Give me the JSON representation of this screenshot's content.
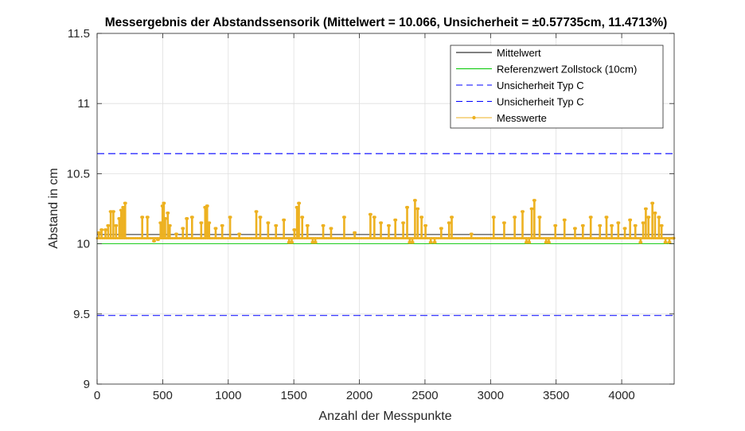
{
  "chart_data": {
    "type": "line",
    "title": "Messergebnis der Abstandssensorik (Mittelwert = 10.066, Unsicherheit = ±0.57735cm, 11.4713%)",
    "xlabel": "Anzahl der Messpunkte",
    "ylabel": "Abstand in cm",
    "xlim": [
      0,
      4400
    ],
    "ylim": [
      9,
      11.5
    ],
    "xticks": [
      0,
      500,
      1000,
      1500,
      2000,
      2500,
      3000,
      3500,
      4000
    ],
    "xtick_labels": [
      "0",
      "500",
      "1000",
      "1500",
      "2000",
      "2500",
      "3000",
      "3500",
      "4000"
    ],
    "yticks": [
      9,
      9.5,
      10,
      10.5,
      11,
      11.5
    ],
    "ytick_labels": [
      "9",
      "9.5",
      "10",
      "10.5",
      "11",
      "11.5"
    ],
    "grid": true,
    "legend_position": "top-right",
    "reference_lines": [
      {
        "name": "Mittelwert",
        "y": 10.066,
        "color": "#000000",
        "style": "solid"
      },
      {
        "name": "Referenzwert Zollstock (10cm)",
        "y": 10.0,
        "color": "#00c800",
        "style": "solid"
      },
      {
        "name": "Unsicherheit Typ C",
        "y": 10.643,
        "color": "#0000ff",
        "style": "dashed"
      },
      {
        "name": "Unsicherheit Typ C",
        "y": 9.489,
        "color": "#0000ff",
        "style": "dashed"
      }
    ],
    "series": [
      {
        "name": "Messwerte",
        "color": "#edb120",
        "baseline": 10.04,
        "x_range": [
          0,
          4400
        ],
        "spikes": [
          {
            "x": 10,
            "y": 10.08
          },
          {
            "x": 30,
            "y": 10.1
          },
          {
            "x": 60,
            "y": 10.1
          },
          {
            "x": 80,
            "y": 10.13
          },
          {
            "x": 100,
            "y": 10.23
          },
          {
            "x": 120,
            "y": 10.23
          },
          {
            "x": 140,
            "y": 10.13
          },
          {
            "x": 165,
            "y": 10.18
          },
          {
            "x": 180,
            "y": 10.24
          },
          {
            "x": 195,
            "y": 10.26
          },
          {
            "x": 210,
            "y": 10.29
          },
          {
            "x": 340,
            "y": 10.19
          },
          {
            "x": 380,
            "y": 10.19
          },
          {
            "x": 430,
            "y": 10.02
          },
          {
            "x": 460,
            "y": 10.03
          },
          {
            "x": 480,
            "y": 10.15
          },
          {
            "x": 495,
            "y": 10.27
          },
          {
            "x": 505,
            "y": 10.29
          },
          {
            "x": 515,
            "y": 10.18
          },
          {
            "x": 535,
            "y": 10.22
          },
          {
            "x": 550,
            "y": 10.13
          },
          {
            "x": 600,
            "y": 10.07
          },
          {
            "x": 650,
            "y": 10.11
          },
          {
            "x": 680,
            "y": 10.18
          },
          {
            "x": 720,
            "y": 10.19
          },
          {
            "x": 790,
            "y": 10.15
          },
          {
            "x": 820,
            "y": 10.26
          },
          {
            "x": 835,
            "y": 10.27
          },
          {
            "x": 850,
            "y": 10.15
          },
          {
            "x": 900,
            "y": 10.11
          },
          {
            "x": 950,
            "y": 10.13
          },
          {
            "x": 1010,
            "y": 10.19
          },
          {
            "x": 1080,
            "y": 10.07
          },
          {
            "x": 1210,
            "y": 10.23
          },
          {
            "x": 1240,
            "y": 10.19
          },
          {
            "x": 1300,
            "y": 10.15
          },
          {
            "x": 1360,
            "y": 10.13
          },
          {
            "x": 1420,
            "y": 10.17
          },
          {
            "x": 1460,
            "y": 10.01
          },
          {
            "x": 1480,
            "y": 10.01
          },
          {
            "x": 1500,
            "y": 10.1
          },
          {
            "x": 1520,
            "y": 10.26
          },
          {
            "x": 1535,
            "y": 10.29
          },
          {
            "x": 1560,
            "y": 10.19
          },
          {
            "x": 1600,
            "y": 10.13
          },
          {
            "x": 1640,
            "y": 10.01
          },
          {
            "x": 1660,
            "y": 10.01
          },
          {
            "x": 1720,
            "y": 10.13
          },
          {
            "x": 1780,
            "y": 10.11
          },
          {
            "x": 1880,
            "y": 10.19
          },
          {
            "x": 1960,
            "y": 10.08
          },
          {
            "x": 2080,
            "y": 10.21
          },
          {
            "x": 2110,
            "y": 10.19
          },
          {
            "x": 2160,
            "y": 10.15
          },
          {
            "x": 2220,
            "y": 10.13
          },
          {
            "x": 2270,
            "y": 10.17
          },
          {
            "x": 2330,
            "y": 10.15
          },
          {
            "x": 2360,
            "y": 10.26
          },
          {
            "x": 2380,
            "y": 10.01
          },
          {
            "x": 2400,
            "y": 10.01
          },
          {
            "x": 2420,
            "y": 10.31
          },
          {
            "x": 2440,
            "y": 10.25
          },
          {
            "x": 2470,
            "y": 10.19
          },
          {
            "x": 2500,
            "y": 10.13
          },
          {
            "x": 2540,
            "y": 10.01
          },
          {
            "x": 2570,
            "y": 10.01
          },
          {
            "x": 2620,
            "y": 10.11
          },
          {
            "x": 2680,
            "y": 10.15
          },
          {
            "x": 2700,
            "y": 10.19
          },
          {
            "x": 2850,
            "y": 10.07
          },
          {
            "x": 3020,
            "y": 10.19
          },
          {
            "x": 3100,
            "y": 10.15
          },
          {
            "x": 3180,
            "y": 10.19
          },
          {
            "x": 3240,
            "y": 10.23
          },
          {
            "x": 3270,
            "y": 10.01
          },
          {
            "x": 3290,
            "y": 10.01
          },
          {
            "x": 3310,
            "y": 10.25
          },
          {
            "x": 3330,
            "y": 10.31
          },
          {
            "x": 3370,
            "y": 10.19
          },
          {
            "x": 3420,
            "y": 10.01
          },
          {
            "x": 3440,
            "y": 10.01
          },
          {
            "x": 3490,
            "y": 10.13
          },
          {
            "x": 3560,
            "y": 10.17
          },
          {
            "x": 3640,
            "y": 10.11
          },
          {
            "x": 3700,
            "y": 10.13
          },
          {
            "x": 3760,
            "y": 10.19
          },
          {
            "x": 3830,
            "y": 10.13
          },
          {
            "x": 3880,
            "y": 10.19
          },
          {
            "x": 3920,
            "y": 10.13
          },
          {
            "x": 3970,
            "y": 10.15
          },
          {
            "x": 4020,
            "y": 10.11
          },
          {
            "x": 4060,
            "y": 10.17
          },
          {
            "x": 4100,
            "y": 10.13
          },
          {
            "x": 4140,
            "y": 10.01
          },
          {
            "x": 4160,
            "y": 10.15
          },
          {
            "x": 4180,
            "y": 10.25
          },
          {
            "x": 4200,
            "y": 10.19
          },
          {
            "x": 4230,
            "y": 10.29
          },
          {
            "x": 4250,
            "y": 10.22
          },
          {
            "x": 4280,
            "y": 10.19
          },
          {
            "x": 4300,
            "y": 10.13
          },
          {
            "x": 4330,
            "y": 10.01
          },
          {
            "x": 4360,
            "y": 10.01
          },
          {
            "x": 4390,
            "y": 10.04
          }
        ]
      }
    ]
  },
  "legend": {
    "items": [
      {
        "label": "Mittelwert",
        "color": "#000000",
        "style": "solid",
        "marker": false
      },
      {
        "label": "Referenzwert Zollstock (10cm)",
        "color": "#00c800",
        "style": "solid",
        "marker": false
      },
      {
        "label": "Unsicherheit Typ C",
        "color": "#0000ff",
        "style": "dashed",
        "marker": false
      },
      {
        "label": "Unsicherheit Typ C",
        "color": "#0000ff",
        "style": "dashed",
        "marker": false
      },
      {
        "label": "Messwerte",
        "color": "#edb120",
        "style": "solid",
        "marker": true
      }
    ]
  }
}
